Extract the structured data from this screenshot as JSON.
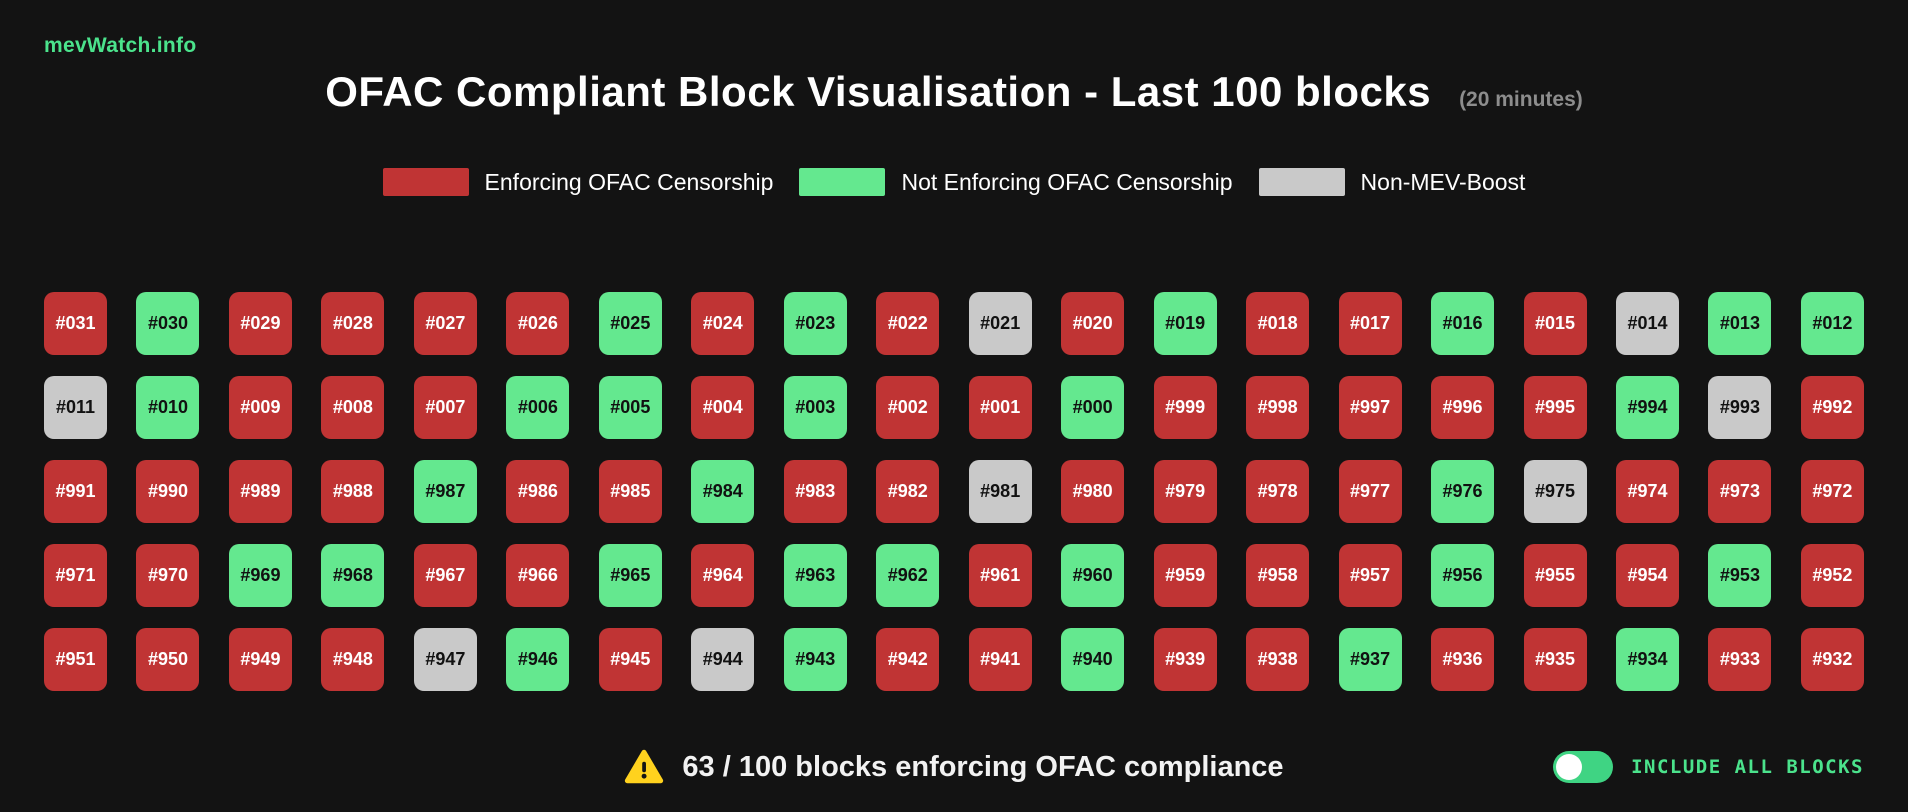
{
  "site": {
    "brand": "mevWatch.info"
  },
  "header": {
    "title": "OFAC Compliant Block Visualisation - Last 100 blocks",
    "subtitle": "(20 minutes)"
  },
  "legend": [
    {
      "label": "Enforcing OFAC Censorship",
      "status": "censoring",
      "color": "#c03434"
    },
    {
      "label": "Not Enforcing OFAC Censorship",
      "status": "not-censoring",
      "color": "#64e88f"
    },
    {
      "label": "Non-MEV-Boost",
      "status": "non-mev-boost",
      "color": "#c9c9c9"
    }
  ],
  "colors": {
    "background": "#131313",
    "censoring": "#c03434",
    "censoring_text": "#ffffff",
    "not-censoring": "#64e88f",
    "not-censoring_text": "#111111",
    "non-mev-boost": "#c9c9c9",
    "non-mev-boost_text": "#111111",
    "brand_green": "#4be38c",
    "toggle_green": "#3fd483",
    "warning_yellow": "#ffd21e"
  },
  "blocks": [
    {
      "label": "#031",
      "status": "censoring"
    },
    {
      "label": "#030",
      "status": "not-censoring"
    },
    {
      "label": "#029",
      "status": "censoring"
    },
    {
      "label": "#028",
      "status": "censoring"
    },
    {
      "label": "#027",
      "status": "censoring"
    },
    {
      "label": "#026",
      "status": "censoring"
    },
    {
      "label": "#025",
      "status": "not-censoring"
    },
    {
      "label": "#024",
      "status": "censoring"
    },
    {
      "label": "#023",
      "status": "not-censoring"
    },
    {
      "label": "#022",
      "status": "censoring"
    },
    {
      "label": "#021",
      "status": "non-mev-boost"
    },
    {
      "label": "#020",
      "status": "censoring"
    },
    {
      "label": "#019",
      "status": "not-censoring"
    },
    {
      "label": "#018",
      "status": "censoring"
    },
    {
      "label": "#017",
      "status": "censoring"
    },
    {
      "label": "#016",
      "status": "not-censoring"
    },
    {
      "label": "#015",
      "status": "censoring"
    },
    {
      "label": "#014",
      "status": "non-mev-boost"
    },
    {
      "label": "#013",
      "status": "not-censoring"
    },
    {
      "label": "#012",
      "status": "not-censoring"
    },
    {
      "label": "#011",
      "status": "non-mev-boost"
    },
    {
      "label": "#010",
      "status": "not-censoring"
    },
    {
      "label": "#009",
      "status": "censoring"
    },
    {
      "label": "#008",
      "status": "censoring"
    },
    {
      "label": "#007",
      "status": "censoring"
    },
    {
      "label": "#006",
      "status": "not-censoring"
    },
    {
      "label": "#005",
      "status": "not-censoring"
    },
    {
      "label": "#004",
      "status": "censoring"
    },
    {
      "label": "#003",
      "status": "not-censoring"
    },
    {
      "label": "#002",
      "status": "censoring"
    },
    {
      "label": "#001",
      "status": "censoring"
    },
    {
      "label": "#000",
      "status": "not-censoring"
    },
    {
      "label": "#999",
      "status": "censoring"
    },
    {
      "label": "#998",
      "status": "censoring"
    },
    {
      "label": "#997",
      "status": "censoring"
    },
    {
      "label": "#996",
      "status": "censoring"
    },
    {
      "label": "#995",
      "status": "censoring"
    },
    {
      "label": "#994",
      "status": "not-censoring"
    },
    {
      "label": "#993",
      "status": "non-mev-boost"
    },
    {
      "label": "#992",
      "status": "censoring"
    },
    {
      "label": "#991",
      "status": "censoring"
    },
    {
      "label": "#990",
      "status": "censoring"
    },
    {
      "label": "#989",
      "status": "censoring"
    },
    {
      "label": "#988",
      "status": "censoring"
    },
    {
      "label": "#987",
      "status": "not-censoring"
    },
    {
      "label": "#986",
      "status": "censoring"
    },
    {
      "label": "#985",
      "status": "censoring"
    },
    {
      "label": "#984",
      "status": "not-censoring"
    },
    {
      "label": "#983",
      "status": "censoring"
    },
    {
      "label": "#982",
      "status": "censoring"
    },
    {
      "label": "#981",
      "status": "non-mev-boost"
    },
    {
      "label": "#980",
      "status": "censoring"
    },
    {
      "label": "#979",
      "status": "censoring"
    },
    {
      "label": "#978",
      "status": "censoring"
    },
    {
      "label": "#977",
      "status": "censoring"
    },
    {
      "label": "#976",
      "status": "not-censoring"
    },
    {
      "label": "#975",
      "status": "non-mev-boost"
    },
    {
      "label": "#974",
      "status": "censoring"
    },
    {
      "label": "#973",
      "status": "censoring"
    },
    {
      "label": "#972",
      "status": "censoring"
    },
    {
      "label": "#971",
      "status": "censoring"
    },
    {
      "label": "#970",
      "status": "censoring"
    },
    {
      "label": "#969",
      "status": "not-censoring"
    },
    {
      "label": "#968",
      "status": "not-censoring"
    },
    {
      "label": "#967",
      "status": "censoring"
    },
    {
      "label": "#966",
      "status": "censoring"
    },
    {
      "label": "#965",
      "status": "not-censoring"
    },
    {
      "label": "#964",
      "status": "censoring"
    },
    {
      "label": "#963",
      "status": "not-censoring"
    },
    {
      "label": "#962",
      "status": "not-censoring"
    },
    {
      "label": "#961",
      "status": "censoring"
    },
    {
      "label": "#960",
      "status": "not-censoring"
    },
    {
      "label": "#959",
      "status": "censoring"
    },
    {
      "label": "#958",
      "status": "censoring"
    },
    {
      "label": "#957",
      "status": "censoring"
    },
    {
      "label": "#956",
      "status": "not-censoring"
    },
    {
      "label": "#955",
      "status": "censoring"
    },
    {
      "label": "#954",
      "status": "censoring"
    },
    {
      "label": "#953",
      "status": "not-censoring"
    },
    {
      "label": "#952",
      "status": "censoring"
    },
    {
      "label": "#951",
      "status": "censoring"
    },
    {
      "label": "#950",
      "status": "censoring"
    },
    {
      "label": "#949",
      "status": "censoring"
    },
    {
      "label": "#948",
      "status": "censoring"
    },
    {
      "label": "#947",
      "status": "non-mev-boost"
    },
    {
      "label": "#946",
      "status": "not-censoring"
    },
    {
      "label": "#945",
      "status": "censoring"
    },
    {
      "label": "#944",
      "status": "non-mev-boost"
    },
    {
      "label": "#943",
      "status": "not-censoring"
    },
    {
      "label": "#942",
      "status": "censoring"
    },
    {
      "label": "#941",
      "status": "censoring"
    },
    {
      "label": "#940",
      "status": "not-censoring"
    },
    {
      "label": "#939",
      "status": "censoring"
    },
    {
      "label": "#938",
      "status": "censoring"
    },
    {
      "label": "#937",
      "status": "not-censoring"
    },
    {
      "label": "#936",
      "status": "censoring"
    },
    {
      "label": "#935",
      "status": "censoring"
    },
    {
      "label": "#934",
      "status": "not-censoring"
    },
    {
      "label": "#933",
      "status": "censoring"
    },
    {
      "label": "#932",
      "status": "censoring"
    }
  ],
  "footer": {
    "status_text": "63 / 100 blocks enforcing OFAC compliance",
    "toggle_label": "INCLUDE ALL BLOCKS",
    "toggle_on": true,
    "toggle_knob_position": "left"
  }
}
